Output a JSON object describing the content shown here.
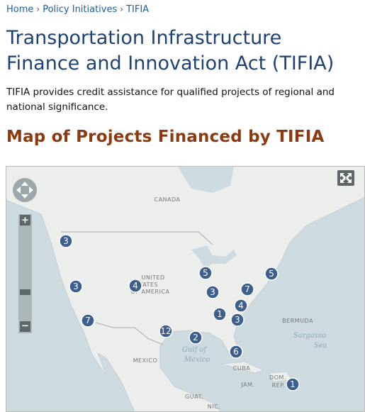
{
  "breadcrumb": {
    "items": [
      "Home",
      "Policy Initiatives",
      "TIFIA"
    ],
    "separator": "›"
  },
  "title": "Transportation Infrastructure Finance and Innovation Act (TIFIA)",
  "description": "TIFIA provides credit assistance for qualified projects of regional and national significance.",
  "map": {
    "heading": "Map of Projects Financed by TIFIA",
    "controls": {
      "zoom_in": "+",
      "zoom_out": "−"
    },
    "labels": [
      "CANADA",
      "UNITED",
      "STATES",
      "OF AMERICA",
      "BERMUDA",
      "Sargasso",
      "Sea",
      "Gulf of",
      "Mexico",
      "MEXICO",
      "CUBA",
      "JAM.",
      "DOM.",
      "REP.",
      "GUAT.",
      "NIC."
    ],
    "clusters": [
      "3",
      "3",
      "4",
      "7",
      "12",
      "2",
      "5",
      "3",
      "7",
      "5",
      "4",
      "1",
      "3",
      "6",
      "1"
    ]
  }
}
